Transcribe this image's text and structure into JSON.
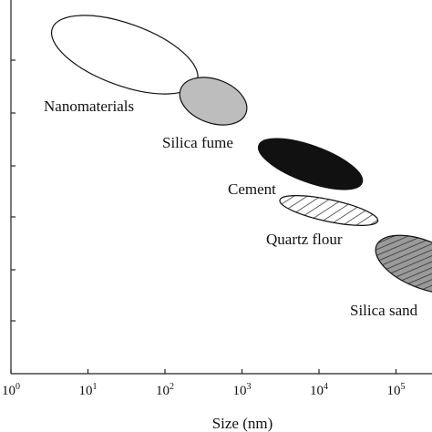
{
  "chart_data": {
    "type": "scatter",
    "title": "",
    "xlabel": "Size (nm)",
    "ylabel": "",
    "x_scale": "log",
    "xlim": [
      1,
      1000000
    ],
    "grid": false,
    "legend": "none",
    "x_ticks": [
      {
        "base": "10",
        "exp": "0",
        "value": 1
      },
      {
        "base": "10",
        "exp": "1",
        "value": 10
      },
      {
        "base": "10",
        "exp": "2",
        "value": 100
      },
      {
        "base": "10",
        "exp": "3",
        "value": 1000
      },
      {
        "base": "10",
        "exp": "4",
        "value": 10000
      },
      {
        "base": "10",
        "exp": "5",
        "value": 100000
      }
    ],
    "series": [
      {
        "name": "Nanomaterials",
        "x_range": [
          3,
          300
        ],
        "fill": "white"
      },
      {
        "name": "Silica fume",
        "x_range": [
          150,
          1200
        ],
        "fill": "#bdbdbd"
      },
      {
        "name": "Cement",
        "x_range": [
          1500,
          40000
        ],
        "fill": "#111111"
      },
      {
        "name": "Quartz flour",
        "x_range": [
          3000,
          60000
        ],
        "fill": "diagonal-hatch"
      },
      {
        "name": "Silica sand",
        "x_range": [
          50000,
          1000000
        ],
        "fill": "gray-hatch"
      }
    ]
  }
}
